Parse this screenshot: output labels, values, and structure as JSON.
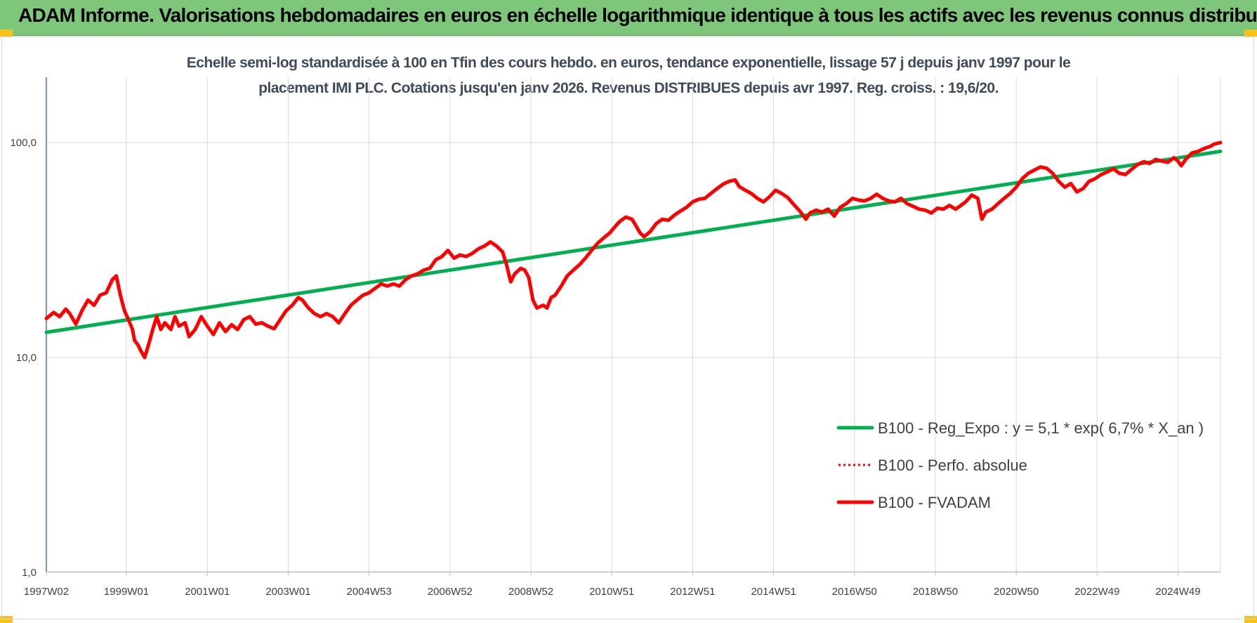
{
  "header": {
    "title": "ADAM Informe. Valorisations hebdomadaires en euros en échelle logarithmique identique à tous les actifs avec les revenus connus distribués"
  },
  "colors": {
    "banner": "#7dc67a",
    "corner_accent": "#f6c21b",
    "trend": "#00b050",
    "series": "#ff0000",
    "grid": "#d9d9d9"
  },
  "chart_data": {
    "type": "line",
    "title_line1": "Echelle semi-log standardisée à 100 en Tfin des cours hebdo. en euros, tendance exponentielle, lissage 57 j depuis janv 1997 pour le",
    "title_line2": "placement IMI PLC. Cotations jusqu'en janv 2026. Revenus DISTRIBUES depuis avr 1997. Reg. croiss. : 19,6/20.",
    "yscale": "log",
    "ylim": [
      1,
      200
    ],
    "yticks": [
      {
        "value": 1,
        "label": "1,0"
      },
      {
        "value": 10,
        "label": "10,0"
      },
      {
        "value": 100,
        "label": "100,0"
      }
    ],
    "xlim": [
      1997.02,
      2026.05
    ],
    "xticks": [
      {
        "year": 1997.02,
        "label": "1997W02"
      },
      {
        "year": 1999.0,
        "label": "1999W01"
      },
      {
        "year": 2001.0,
        "label": "2001W01"
      },
      {
        "year": 2003.0,
        "label": "2003W01"
      },
      {
        "year": 2005.0,
        "label": "2004W53"
      },
      {
        "year": 2007.0,
        "label": "2006W52"
      },
      {
        "year": 2009.0,
        "label": "2008W52"
      },
      {
        "year": 2011.0,
        "label": "2010W51"
      },
      {
        "year": 2013.0,
        "label": "2012W51"
      },
      {
        "year": 2015.0,
        "label": "2014W51"
      },
      {
        "year": 2017.0,
        "label": "2016W50"
      },
      {
        "year": 2019.0,
        "label": "2018W50"
      },
      {
        "year": 2021.0,
        "label": "2020W50"
      },
      {
        "year": 2023.0,
        "label": "2022W49"
      },
      {
        "year": 2025.0,
        "label": "2024W49"
      }
    ],
    "grid": true,
    "legend_position": "bottom-right",
    "series": [
      {
        "name": "B100 - Reg_Expo : y = 5,1 * exp( 6,7% *  X_an )",
        "style": "solid-thick",
        "color": "#00b050",
        "points": [
          [
            1997.02,
            13.1
          ],
          [
            2026.05,
            91.0
          ]
        ]
      },
      {
        "name": "B100 - Perfo. absolue",
        "style": "dotted",
        "color": "#ff0000",
        "points": []
      },
      {
        "name": "B100 - FVADAM",
        "style": "solid-thick",
        "color": "#ff0000",
        "points": [
          [
            1997.02,
            15.2
          ],
          [
            1997.2,
            16.2
          ],
          [
            1997.35,
            15.5
          ],
          [
            1997.5,
            16.8
          ],
          [
            1997.6,
            16.0
          ],
          [
            1997.75,
            14.3
          ],
          [
            1997.9,
            16.5
          ],
          [
            1998.05,
            18.5
          ],
          [
            1998.2,
            17.5
          ],
          [
            1998.35,
            19.5
          ],
          [
            1998.5,
            20.0
          ],
          [
            1998.65,
            23.0
          ],
          [
            1998.75,
            24.0
          ],
          [
            1998.85,
            19.5
          ],
          [
            1998.95,
            16.5
          ],
          [
            1999.05,
            15.0
          ],
          [
            1999.15,
            13.5
          ],
          [
            1999.2,
            12.0
          ],
          [
            1999.28,
            11.5
          ],
          [
            1999.35,
            10.8
          ],
          [
            1999.45,
            10.0
          ],
          [
            1999.55,
            11.5
          ],
          [
            1999.65,
            13.5
          ],
          [
            1999.75,
            15.5
          ],
          [
            1999.85,
            13.5
          ],
          [
            1999.95,
            14.5
          ],
          [
            2000.1,
            13.5
          ],
          [
            2000.2,
            15.5
          ],
          [
            2000.3,
            14.0
          ],
          [
            2000.45,
            14.5
          ],
          [
            2000.55,
            12.5
          ],
          [
            2000.7,
            13.5
          ],
          [
            2000.85,
            15.5
          ],
          [
            2001.0,
            14.0
          ],
          [
            2001.15,
            12.8
          ],
          [
            2001.3,
            14.5
          ],
          [
            2001.45,
            13.2
          ],
          [
            2001.6,
            14.2
          ],
          [
            2001.75,
            13.5
          ],
          [
            2001.9,
            15.0
          ],
          [
            2002.05,
            15.5
          ],
          [
            2002.2,
            14.3
          ],
          [
            2002.35,
            14.5
          ],
          [
            2002.5,
            14.0
          ],
          [
            2002.65,
            13.6
          ],
          [
            2002.8,
            15.0
          ],
          [
            2002.95,
            16.5
          ],
          [
            2003.1,
            17.5
          ],
          [
            2003.25,
            19.0
          ],
          [
            2003.35,
            18.5
          ],
          [
            2003.5,
            17.0
          ],
          [
            2003.65,
            16.0
          ],
          [
            2003.8,
            15.5
          ],
          [
            2003.95,
            16.0
          ],
          [
            2004.1,
            15.5
          ],
          [
            2004.25,
            14.5
          ],
          [
            2004.4,
            16.0
          ],
          [
            2004.55,
            17.5
          ],
          [
            2004.7,
            18.5
          ],
          [
            2004.85,
            19.5
          ],
          [
            2005.0,
            20.0
          ],
          [
            2005.15,
            21.0
          ],
          [
            2005.3,
            22.0
          ],
          [
            2005.45,
            21.5
          ],
          [
            2005.6,
            22.0
          ],
          [
            2005.75,
            21.5
          ],
          [
            2005.9,
            23.0
          ],
          [
            2006.05,
            24.0
          ],
          [
            2006.2,
            24.5
          ],
          [
            2006.35,
            25.5
          ],
          [
            2006.5,
            26.0
          ],
          [
            2006.65,
            28.5
          ],
          [
            2006.8,
            29.5
          ],
          [
            2006.95,
            31.5
          ],
          [
            2007.1,
            29.0
          ],
          [
            2007.25,
            30.0
          ],
          [
            2007.4,
            29.5
          ],
          [
            2007.55,
            30.5
          ],
          [
            2007.7,
            32.0
          ],
          [
            2007.85,
            33.0
          ],
          [
            2008.0,
            34.5
          ],
          [
            2008.15,
            33.0
          ],
          [
            2008.3,
            31.0
          ],
          [
            2008.4,
            27.0
          ],
          [
            2008.5,
            22.5
          ],
          [
            2008.6,
            24.5
          ],
          [
            2008.75,
            26.0
          ],
          [
            2008.85,
            25.5
          ],
          [
            2008.95,
            23.5
          ],
          [
            2009.05,
            18.5
          ],
          [
            2009.15,
            17.0
          ],
          [
            2009.3,
            17.5
          ],
          [
            2009.4,
            17.0
          ],
          [
            2009.5,
            19.0
          ],
          [
            2009.6,
            19.5
          ],
          [
            2009.75,
            21.5
          ],
          [
            2009.9,
            24.0
          ],
          [
            2010.05,
            25.5
          ],
          [
            2010.2,
            27.0
          ],
          [
            2010.35,
            29.0
          ],
          [
            2010.5,
            31.5
          ],
          [
            2010.65,
            34.0
          ],
          [
            2010.8,
            36.0
          ],
          [
            2010.95,
            38.0
          ],
          [
            2011.1,
            41.0
          ],
          [
            2011.2,
            43.0
          ],
          [
            2011.35,
            45.0
          ],
          [
            2011.5,
            44.0
          ],
          [
            2011.6,
            41.0
          ],
          [
            2011.7,
            38.0
          ],
          [
            2011.8,
            36.5
          ],
          [
            2011.95,
            38.5
          ],
          [
            2012.1,
            42.0
          ],
          [
            2012.25,
            44.0
          ],
          [
            2012.4,
            43.5
          ],
          [
            2012.55,
            46.0
          ],
          [
            2012.7,
            48.0
          ],
          [
            2012.85,
            50.0
          ],
          [
            2013.0,
            53.0
          ],
          [
            2013.15,
            54.5
          ],
          [
            2013.3,
            55.0
          ],
          [
            2013.45,
            58.0
          ],
          [
            2013.6,
            61.0
          ],
          [
            2013.75,
            64.0
          ],
          [
            2013.9,
            66.0
          ],
          [
            2014.05,
            67.0
          ],
          [
            2014.15,
            62.5
          ],
          [
            2014.3,
            60.0
          ],
          [
            2014.45,
            58.0
          ],
          [
            2014.6,
            55.0
          ],
          [
            2014.75,
            53.0
          ],
          [
            2014.9,
            56.0
          ],
          [
            2015.05,
            60.0
          ],
          [
            2015.2,
            58.0
          ],
          [
            2015.35,
            55.5
          ],
          [
            2015.5,
            51.5
          ],
          [
            2015.65,
            48.0
          ],
          [
            2015.8,
            44.0
          ],
          [
            2015.9,
            47.0
          ],
          [
            2016.05,
            48.5
          ],
          [
            2016.2,
            47.5
          ],
          [
            2016.35,
            49.0
          ],
          [
            2016.5,
            45.5
          ],
          [
            2016.65,
            50.0
          ],
          [
            2016.8,
            52.0
          ],
          [
            2016.95,
            55.0
          ],
          [
            2017.1,
            54.0
          ],
          [
            2017.25,
            53.5
          ],
          [
            2017.4,
            55.0
          ],
          [
            2017.55,
            57.5
          ],
          [
            2017.7,
            55.0
          ],
          [
            2017.85,
            53.5
          ],
          [
            2018.0,
            53.0
          ],
          [
            2018.15,
            55.0
          ],
          [
            2018.3,
            52.0
          ],
          [
            2018.45,
            50.5
          ],
          [
            2018.6,
            49.0
          ],
          [
            2018.75,
            48.5
          ],
          [
            2018.9,
            47.0
          ],
          [
            2019.05,
            49.5
          ],
          [
            2019.2,
            49.0
          ],
          [
            2019.35,
            51.0
          ],
          [
            2019.5,
            49.0
          ],
          [
            2019.6,
            50.5
          ],
          [
            2019.75,
            53.0
          ],
          [
            2019.9,
            57.0
          ],
          [
            2020.05,
            55.0
          ],
          [
            2020.15,
            44.0
          ],
          [
            2020.25,
            47.5
          ],
          [
            2020.4,
            49.0
          ],
          [
            2020.55,
            52.0
          ],
          [
            2020.7,
            55.0
          ],
          [
            2020.85,
            58.0
          ],
          [
            2021.0,
            62.0
          ],
          [
            2021.15,
            68.0
          ],
          [
            2021.3,
            72.0
          ],
          [
            2021.45,
            74.5
          ],
          [
            2021.6,
            77.0
          ],
          [
            2021.75,
            76.0
          ],
          [
            2021.9,
            72.0
          ],
          [
            2022.05,
            66.0
          ],
          [
            2022.2,
            62.0
          ],
          [
            2022.35,
            64.5
          ],
          [
            2022.5,
            59.0
          ],
          [
            2022.65,
            61.0
          ],
          [
            2022.8,
            66.0
          ],
          [
            2022.95,
            68.0
          ],
          [
            2023.1,
            71.0
          ],
          [
            2023.25,
            73.0
          ],
          [
            2023.4,
            75.5
          ],
          [
            2023.55,
            72.0
          ],
          [
            2023.7,
            71.0
          ],
          [
            2023.85,
            75.0
          ],
          [
            2024.0,
            79.0
          ],
          [
            2024.15,
            81.5
          ],
          [
            2024.3,
            80.0
          ],
          [
            2024.45,
            83.5
          ],
          [
            2024.6,
            82.0
          ],
          [
            2024.75,
            81.0
          ],
          [
            2024.9,
            85.0
          ],
          [
            2025.0,
            82.0
          ],
          [
            2025.08,
            78.0
          ],
          [
            2025.2,
            84.0
          ],
          [
            2025.35,
            89.5
          ],
          [
            2025.5,
            91.0
          ],
          [
            2025.65,
            94.0
          ],
          [
            2025.8,
            96.0
          ],
          [
            2025.9,
            98.5
          ],
          [
            2026.05,
            100.0
          ]
        ]
      }
    ]
  }
}
